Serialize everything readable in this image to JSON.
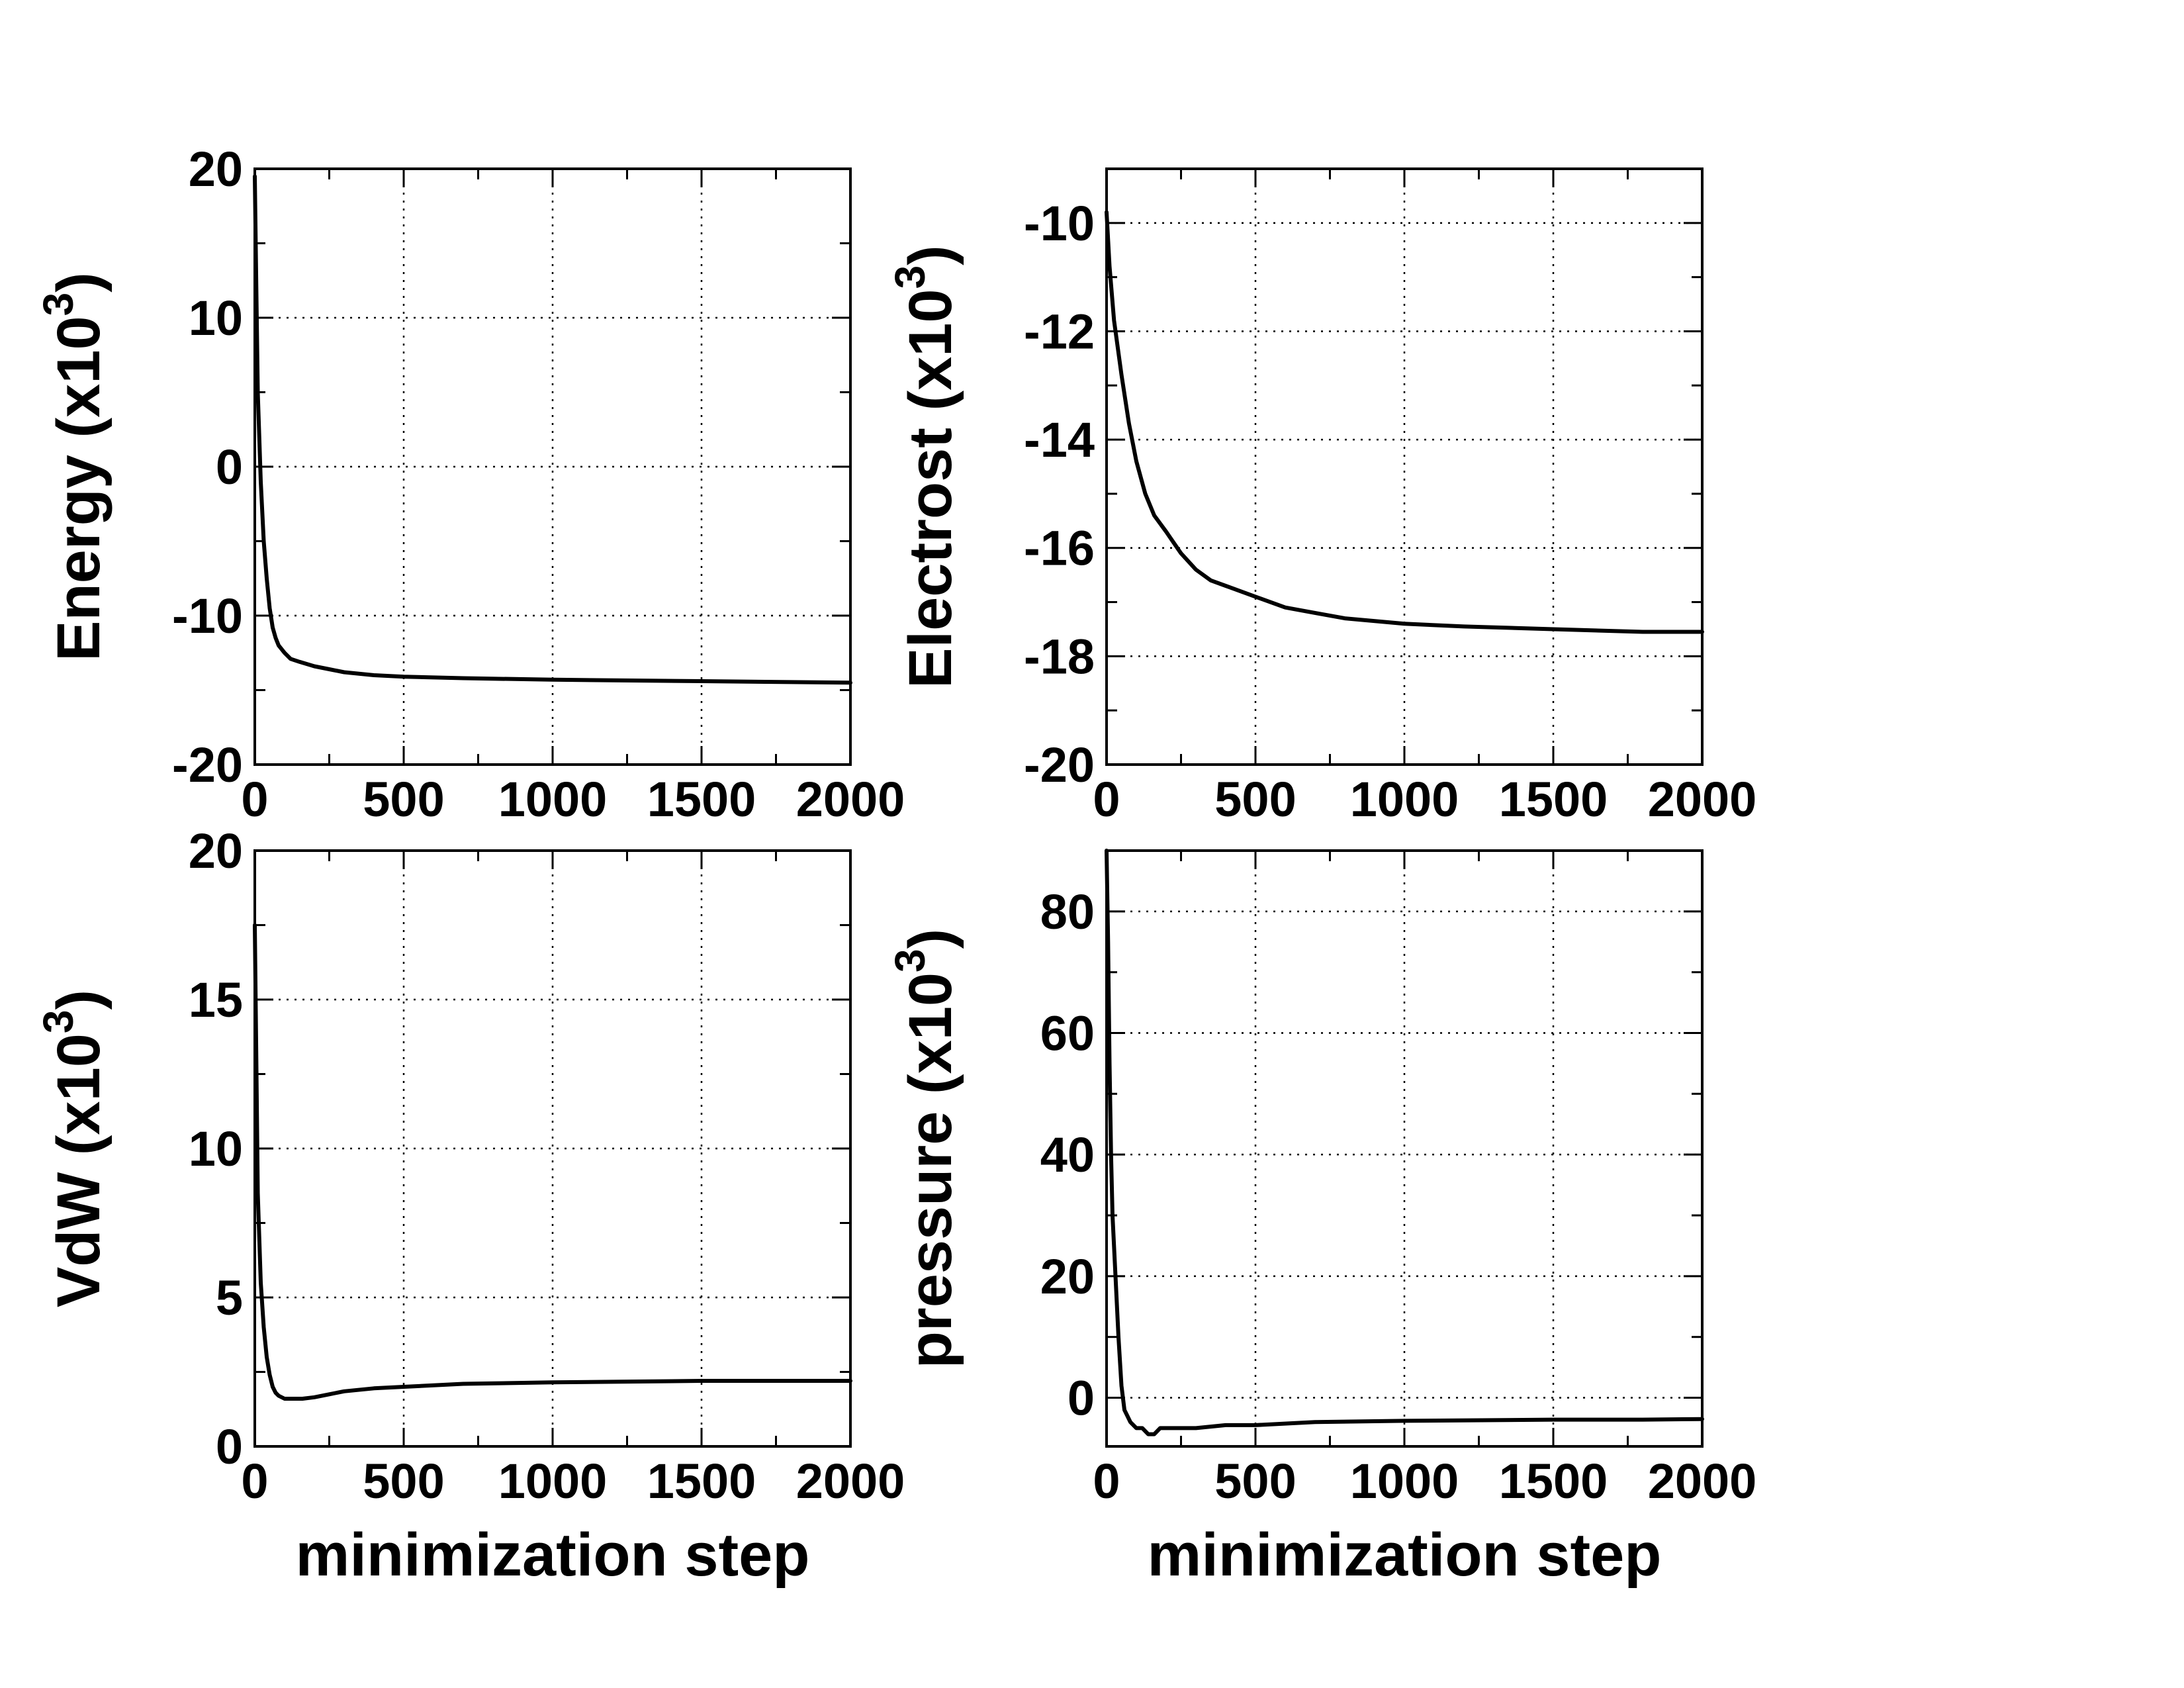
{
  "chart_data": [
    {
      "type": "line",
      "panel": "top-left",
      "ylabel_main": "Energy (x10",
      "ylabel_sup": "3",
      "ylabel_close": ")",
      "xlabel": "",
      "xlim": [
        0,
        2000
      ],
      "ylim": [
        -20,
        20
      ],
      "xticks": [
        0,
        500,
        1000,
        1500,
        2000
      ],
      "yticks": [
        20,
        10,
        0,
        -10,
        -20
      ],
      "grid": true,
      "series": [
        {
          "x": [
            0,
            5,
            10,
            20,
            30,
            40,
            50,
            60,
            70,
            80,
            100,
            120,
            150,
            200,
            250,
            300,
            400,
            500,
            700,
            1000,
            1500,
            2000
          ],
          "y": [
            19.5,
            12,
            5,
            -1,
            -5,
            -7.5,
            -9.5,
            -10.8,
            -11.5,
            -12,
            -12.5,
            -12.9,
            -13.1,
            -13.4,
            -13.6,
            -13.8,
            -14.0,
            -14.1,
            -14.2,
            -14.3,
            -14.4,
            -14.5
          ]
        }
      ]
    },
    {
      "type": "line",
      "panel": "top-right",
      "ylabel_main": "Electrost (x10",
      "ylabel_sup": "3",
      "ylabel_close": ")",
      "xlabel": "",
      "xlim": [
        0,
        2000
      ],
      "ylim": [
        -20,
        -9
      ],
      "xticks": [
        0,
        500,
        1000,
        1500,
        2000
      ],
      "yticks": [
        -10,
        -12,
        -14,
        -16,
        -18,
        -20
      ],
      "grid": true,
      "series": [
        {
          "x": [
            0,
            10,
            25,
            50,
            75,
            100,
            130,
            160,
            200,
            250,
            300,
            350,
            400,
            500,
            600,
            700,
            800,
            1000,
            1200,
            1500,
            1800,
            2000
          ],
          "y": [
            -9.8,
            -10.8,
            -11.8,
            -12.8,
            -13.7,
            -14.4,
            -15.0,
            -15.4,
            -15.7,
            -16.1,
            -16.4,
            -16.6,
            -16.7,
            -16.9,
            -17.1,
            -17.2,
            -17.3,
            -17.4,
            -17.45,
            -17.5,
            -17.55,
            -17.55
          ]
        }
      ]
    },
    {
      "type": "line",
      "panel": "bottom-left",
      "ylabel_main": "VdW (x10",
      "ylabel_sup": "3",
      "ylabel_close": ")",
      "xlabel": "minimization step",
      "xlim": [
        0,
        2000
      ],
      "ylim": [
        0,
        20
      ],
      "xticks": [
        0,
        500,
        1000,
        1500,
        2000
      ],
      "yticks": [
        20,
        15,
        10,
        5,
        0
      ],
      "grid": true,
      "series": [
        {
          "x": [
            0,
            5,
            10,
            20,
            30,
            40,
            50,
            60,
            70,
            80,
            100,
            130,
            160,
            200,
            250,
            300,
            400,
            500,
            600,
            700,
            1000,
            1500,
            2000
          ],
          "y": [
            17.5,
            13,
            8.5,
            5.5,
            4,
            3,
            2.4,
            2.0,
            1.8,
            1.7,
            1.6,
            1.6,
            1.6,
            1.65,
            1.75,
            1.85,
            1.95,
            2.0,
            2.05,
            2.1,
            2.15,
            2.2,
            2.2
          ]
        }
      ]
    },
    {
      "type": "line",
      "panel": "bottom-right",
      "ylabel_main": "pressure (x10",
      "ylabel_sup": "3",
      "ylabel_close": ")",
      "xlabel": "minimization step",
      "xlim": [
        0,
        2000
      ],
      "ylim": [
        -8,
        90
      ],
      "xticks": [
        0,
        500,
        1000,
        1500,
        2000
      ],
      "yticks": [
        80,
        60,
        40,
        20,
        0
      ],
      "grid": true,
      "series": [
        {
          "x": [
            0,
            5,
            10,
            15,
            20,
            30,
            40,
            50,
            60,
            70,
            80,
            100,
            120,
            140,
            160,
            180,
            200,
            250,
            300,
            400,
            500,
            700,
            1000,
            1500,
            1800,
            2000
          ],
          "y": [
            90,
            75,
            55,
            40,
            30,
            20,
            10,
            2,
            -2,
            -3,
            -4,
            -5,
            -5,
            -6,
            -6,
            -5,
            -5,
            -5,
            -5,
            -4.5,
            -4.5,
            -4,
            -3.8,
            -3.6,
            -3.6,
            -3.5
          ]
        }
      ]
    }
  ]
}
